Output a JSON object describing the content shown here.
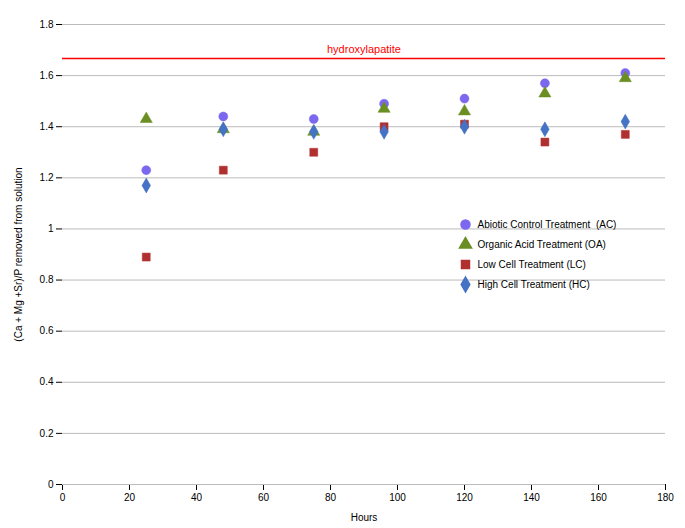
{
  "chart_data": {
    "type": "scatter",
    "x_label": "Hours",
    "y_label": "(Ca + Mg +Sr)/P removed from solution",
    "series": [
      {
        "name": "Abiotic Control Treatment  (AC)",
        "color": "#7B68EE",
        "marker": "circle",
        "x": [
          25,
          48,
          75,
          96,
          120,
          144,
          168
        ],
        "values": [
          1.23,
          1.44,
          1.43,
          1.49,
          1.51,
          1.57,
          1.61
        ]
      },
      {
        "name": "Organic Acid Treatment (OA)",
        "color": "#6B8E23",
        "marker": "triangle",
        "x": [
          25,
          48,
          75,
          96,
          120,
          144,
          168
        ],
        "values": [
          1.43,
          1.39,
          1.38,
          1.47,
          1.46,
          1.53,
          1.59
        ]
      },
      {
        "name": "Low Cell Treatment (LC)",
        "color": "#B03030",
        "marker": "square",
        "x": [
          25,
          48,
          75,
          96,
          120,
          144,
          168
        ],
        "values": [
          0.89,
          1.23,
          1.3,
          1.4,
          1.41,
          1.34,
          1.37
        ]
      },
      {
        "name": "High Cell Treatment (HC)",
        "color": "#4472C4",
        "marker": "diamond",
        "x": [
          25,
          48,
          75,
          96,
          120,
          144,
          168
        ],
        "values": [
          1.17,
          1.39,
          1.38,
          1.38,
          1.4,
          1.39,
          1.42
        ]
      }
    ],
    "reference_lines": [
      {
        "y": 1.667,
        "label": "hydroxylapatite",
        "color": "#FF0000"
      }
    ],
    "xlim": [
      0,
      180
    ],
    "xticks": [
      0,
      20,
      40,
      60,
      80,
      100,
      120,
      140,
      160,
      180
    ],
    "ylim": [
      0,
      1.8
    ],
    "yticks": [
      0,
      0.2,
      0.4,
      0.6,
      0.8,
      1,
      1.2,
      1.4,
      1.6,
      1.8
    ],
    "grid": "y",
    "legend": "right"
  }
}
